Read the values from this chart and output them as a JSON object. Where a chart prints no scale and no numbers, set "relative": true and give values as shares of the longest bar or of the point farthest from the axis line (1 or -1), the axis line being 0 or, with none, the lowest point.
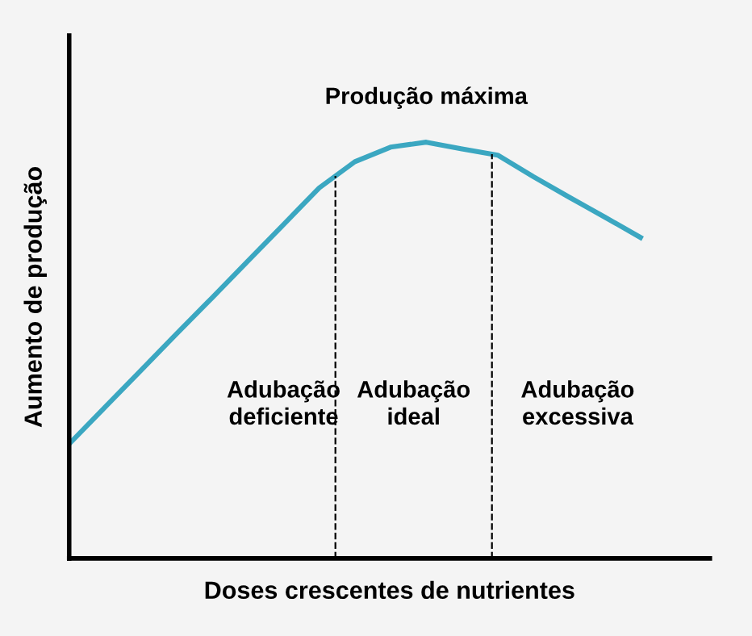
{
  "chart_data": {
    "type": "line",
    "relative": true,
    "xlabel": "Doses crescentes de nutrientes",
    "ylabel": "Aumento de produção",
    "categories": [
      null,
      null,
      null,
      null,
      null,
      null,
      null,
      null,
      null,
      null,
      null,
      null,
      null,
      null,
      null,
      null,
      null
    ],
    "series": [
      {
        "color": "#3ba7c1",
        "values": [
          0.275,
          0.363,
          0.451,
          0.539,
          0.626,
          0.714,
          0.802,
          0.89,
          0.953,
          0.988,
          1,
          0.984,
          0.969,
          0.917,
          0.868,
          0.82,
          0.771
        ]
      }
    ],
    "annotations": [
      "Produção máxima",
      "Adubação\ndeficiente",
      "Adubação\nideal",
      "Adubação\nexcessiva"
    ],
    "legend": false,
    "marker": "none",
    "line_style": "solid"
  }
}
